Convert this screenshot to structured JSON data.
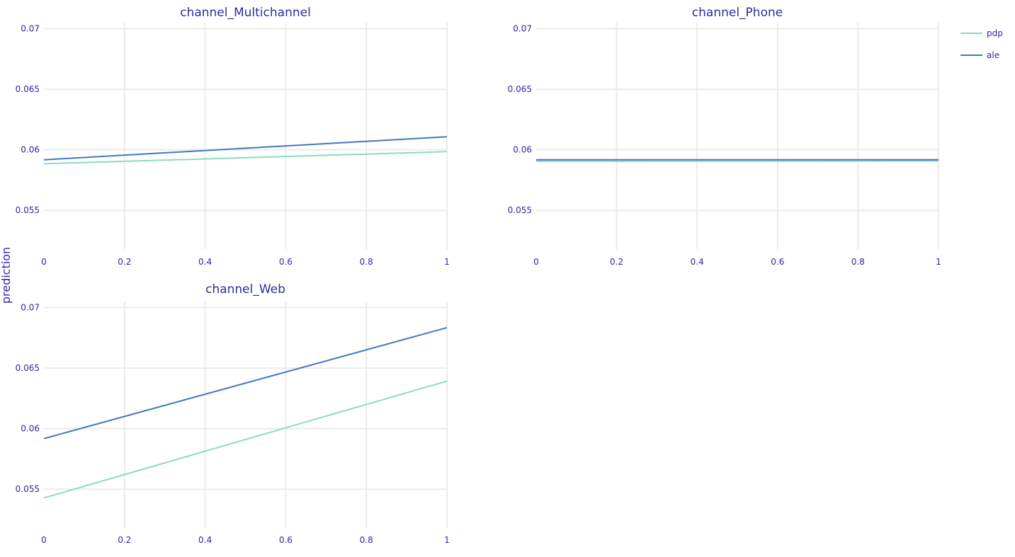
{
  "chart_data": {
    "type": "line",
    "ylabel": "prediction",
    "legend": {
      "placement": "top-right",
      "items": [
        {
          "name": "pdp",
          "color": "#8bdcbe"
        },
        {
          "name": "ale",
          "color": "#4378bf"
        }
      ]
    },
    "grid": true,
    "xlim": [
      0,
      1
    ],
    "ylim": [
      0.0518,
      0.0705
    ],
    "x_ticks": [
      "0",
      "0.2",
      "0.4",
      "0.6",
      "0.8",
      "1"
    ],
    "y_ticks": [
      "0.055",
      "0.06",
      "0.065",
      "0.07"
    ],
    "y_tick_values": [
      0.055,
      0.06,
      0.065,
      0.07
    ],
    "x_tick_values": [
      0,
      0.2,
      0.4,
      0.6,
      0.8,
      1
    ],
    "panels": [
      {
        "title": "channel_Multichannel",
        "x": [
          0,
          1
        ],
        "series": [
          {
            "name": "pdp",
            "values": [
              0.05885,
              0.05985
            ]
          },
          {
            "name": "ale",
            "values": [
              0.05918,
              0.06108
            ]
          }
        ]
      },
      {
        "title": "channel_Phone",
        "x": [
          0,
          1
        ],
        "series": [
          {
            "name": "pdp",
            "values": [
              0.05905,
              0.05908
            ]
          },
          {
            "name": "ale",
            "values": [
              0.05918,
              0.05918
            ]
          }
        ]
      },
      {
        "title": "channel_Web",
        "x": [
          0,
          1
        ],
        "series": [
          {
            "name": "pdp",
            "values": [
              0.05428,
              0.06393
            ]
          },
          {
            "name": "ale",
            "values": [
              0.05918,
              0.06834
            ]
          }
        ]
      }
    ]
  }
}
